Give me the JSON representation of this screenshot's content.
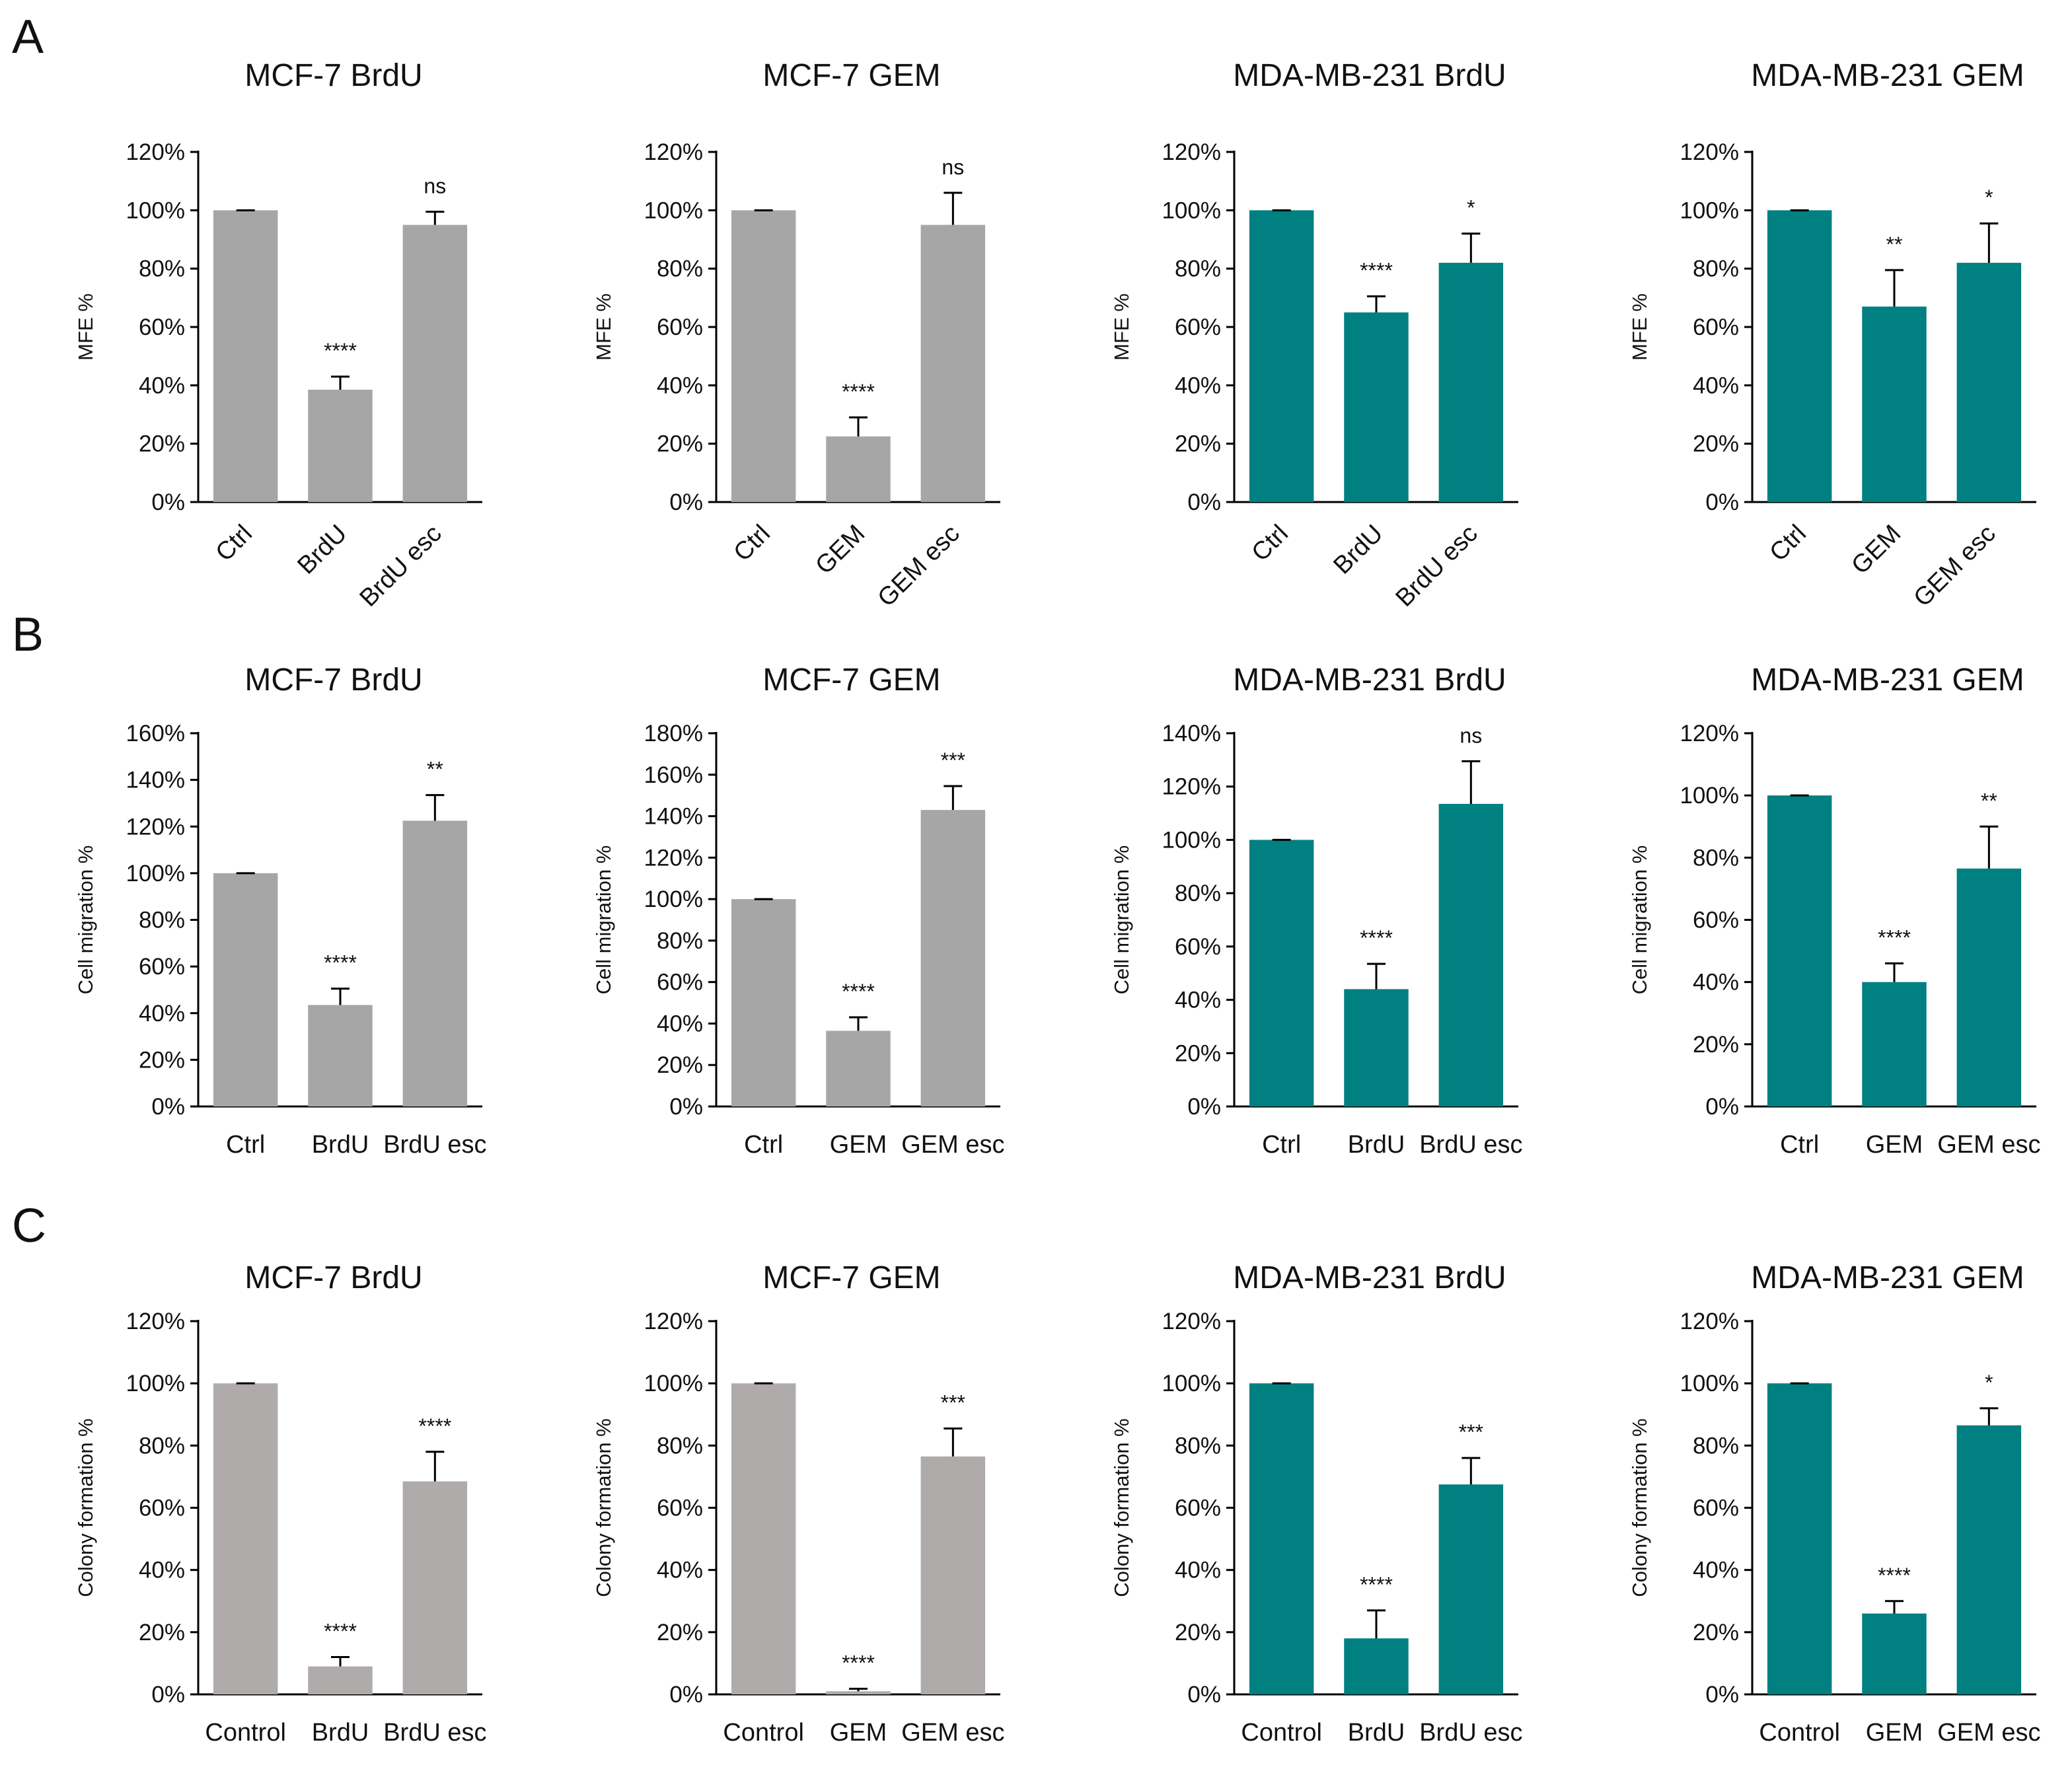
{
  "figure": {
    "panels": [
      {
        "letter": "A"
      },
      {
        "letter": "B"
      },
      {
        "letter": "C"
      }
    ]
  },
  "colors": {
    "gray": "#a6a6a6",
    "gray_c": "#afabab",
    "teal": "#008080",
    "axis": "#000000"
  },
  "chart_data": [
    {
      "type": "bar",
      "panel": "A",
      "title": "MCF-7 BrdU",
      "ylabel": "MFE %",
      "color": "gray",
      "ylim": [
        0,
        120
      ],
      "yticks": [
        "0%",
        "20%",
        "40%",
        "60%",
        "80%",
        "100%",
        "120%"
      ],
      "categories": [
        "Ctrl",
        "BrdU",
        "BrdU esc"
      ],
      "values": [
        100,
        38.5,
        95
      ],
      "errors": [
        0,
        4.5,
        4.5
      ],
      "significance": [
        "",
        "****",
        "ns"
      ],
      "rotated_labels": true
    },
    {
      "type": "bar",
      "panel": "A",
      "title": "MCF-7 GEM",
      "ylabel": "MFE %",
      "color": "gray",
      "ylim": [
        0,
        120
      ],
      "yticks": [
        "0%",
        "20%",
        "40%",
        "60%",
        "80%",
        "100%",
        "120%"
      ],
      "categories": [
        "Ctrl",
        "GEM",
        "GEM esc"
      ],
      "values": [
        100,
        22.5,
        95
      ],
      "errors": [
        0,
        6.5,
        11
      ],
      "significance": [
        "",
        "****",
        "ns"
      ],
      "rotated_labels": true
    },
    {
      "type": "bar",
      "panel": "A",
      "title": "MDA-MB-231 BrdU",
      "ylabel": "MFE %",
      "color": "teal",
      "ylim": [
        0,
        120
      ],
      "yticks": [
        "0%",
        "20%",
        "40%",
        "60%",
        "80%",
        "100%",
        "120%"
      ],
      "categories": [
        "Ctrl",
        "BrdU",
        "BrdU esc"
      ],
      "values": [
        100,
        65,
        82
      ],
      "errors": [
        0,
        5.5,
        10
      ],
      "significance": [
        "",
        "****",
        "*"
      ],
      "rotated_labels": true
    },
    {
      "type": "bar",
      "panel": "A",
      "title": "MDA-MB-231 GEM",
      "ylabel": "MFE %",
      "color": "teal",
      "ylim": [
        0,
        120
      ],
      "yticks": [
        "0%",
        "20%",
        "40%",
        "60%",
        "80%",
        "100%",
        "120%"
      ],
      "categories": [
        "Ctrl",
        "GEM",
        "GEM esc"
      ],
      "values": [
        100,
        67,
        82
      ],
      "errors": [
        0,
        12.5,
        13.5
      ],
      "significance": [
        "",
        "**",
        "*"
      ],
      "rotated_labels": true
    },
    {
      "type": "bar",
      "panel": "B",
      "title": "MCF-7 BrdU",
      "ylabel": "Cell migration %",
      "color": "gray",
      "ylim": [
        0,
        160
      ],
      "yticks": [
        "0%",
        "20%",
        "40%",
        "60%",
        "80%",
        "100%",
        "120%",
        "140%",
        "160%"
      ],
      "categories": [
        "Ctrl",
        "BrdU",
        "BrdU esc"
      ],
      "values": [
        100,
        43.5,
        122.5
      ],
      "errors": [
        0,
        7,
        11
      ],
      "significance": [
        "",
        "****",
        "**"
      ],
      "rotated_labels": false
    },
    {
      "type": "bar",
      "panel": "B",
      "title": "MCF-7 GEM",
      "ylabel": "Cell migration %",
      "color": "gray",
      "ylim": [
        0,
        180
      ],
      "yticks": [
        "0%",
        "20%",
        "40%",
        "60%",
        "80%",
        "100%",
        "120%",
        "140%",
        "160%",
        "180%"
      ],
      "categories": [
        "Ctrl",
        "GEM",
        "GEM esc"
      ],
      "values": [
        100,
        36.5,
        143
      ],
      "errors": [
        0,
        6.5,
        11.5
      ],
      "significance": [
        "",
        "****",
        "***"
      ],
      "rotated_labels": false
    },
    {
      "type": "bar",
      "panel": "B",
      "title": "MDA-MB-231 BrdU",
      "ylabel": "Cell migration %",
      "color": "teal",
      "ylim": [
        0,
        140
      ],
      "yticks": [
        "0%",
        "20%",
        "40%",
        "60%",
        "80%",
        "100%",
        "120%",
        "140%"
      ],
      "categories": [
        "Ctrl",
        "BrdU",
        "BrdU esc"
      ],
      "values": [
        100,
        44,
        113.5
      ],
      "errors": [
        0,
        9.5,
        16
      ],
      "significance": [
        "",
        "****",
        "ns"
      ],
      "rotated_labels": false
    },
    {
      "type": "bar",
      "panel": "B",
      "title": "MDA-MB-231 GEM",
      "ylabel": "Cell migration %",
      "color": "teal",
      "ylim": [
        0,
        120
      ],
      "yticks": [
        "0%",
        "20%",
        "40%",
        "60%",
        "80%",
        "100%",
        "120%"
      ],
      "categories": [
        "Ctrl",
        "GEM",
        "GEM esc"
      ],
      "values": [
        100,
        40,
        76.5
      ],
      "errors": [
        0,
        6,
        13.5
      ],
      "significance": [
        "",
        "****",
        "**"
      ],
      "rotated_labels": false
    },
    {
      "type": "bar",
      "panel": "C",
      "title": "MCF-7 BrdU",
      "ylabel": "Colony formation %",
      "color": "gray_c",
      "ylim": [
        0,
        120
      ],
      "yticks": [
        "0%",
        "20%",
        "40%",
        "60%",
        "80%",
        "100%",
        "120%"
      ],
      "categories": [
        "Control",
        "BrdU",
        "BrdU esc"
      ],
      "values": [
        100,
        9,
        68.5
      ],
      "errors": [
        0,
        3,
        9.5
      ],
      "significance": [
        "",
        "****",
        "****"
      ],
      "rotated_labels": false
    },
    {
      "type": "bar",
      "panel": "C",
      "title": "MCF-7 GEM",
      "ylabel": "Colony formation %",
      "color": "gray_c",
      "ylim": [
        0,
        120
      ],
      "yticks": [
        "0%",
        "20%",
        "40%",
        "60%",
        "80%",
        "100%",
        "120%"
      ],
      "categories": [
        "Control",
        "GEM",
        "GEM esc"
      ],
      "values": [
        100,
        1,
        76.5
      ],
      "errors": [
        0,
        0.8,
        9
      ],
      "significance": [
        "",
        "****",
        "***"
      ],
      "rotated_labels": false
    },
    {
      "type": "bar",
      "panel": "C",
      "title": "MDA-MB-231 BrdU",
      "ylabel": "Colony formation %",
      "color": "teal",
      "ylim": [
        0,
        120
      ],
      "yticks": [
        "0%",
        "20%",
        "40%",
        "60%",
        "80%",
        "100%",
        "120%"
      ],
      "categories": [
        "Control",
        "BrdU",
        "BrdU esc"
      ],
      "values": [
        100,
        18,
        67.5
      ],
      "errors": [
        0,
        9,
        8.5
      ],
      "significance": [
        "",
        "****",
        "***"
      ],
      "rotated_labels": false
    },
    {
      "type": "bar",
      "panel": "C",
      "title": "MDA-MB-231 GEM",
      "ylabel": "Colony formation %",
      "color": "teal",
      "ylim": [
        0,
        120
      ],
      "yticks": [
        "0%",
        "20%",
        "40%",
        "60%",
        "80%",
        "100%",
        "120%"
      ],
      "categories": [
        "Control",
        "GEM",
        "GEM esc"
      ],
      "values": [
        100,
        26,
        86.5
      ],
      "errors": [
        0,
        4,
        5.5
      ],
      "significance": [
        "",
        "****",
        "*"
      ],
      "rotated_labels": false
    }
  ]
}
